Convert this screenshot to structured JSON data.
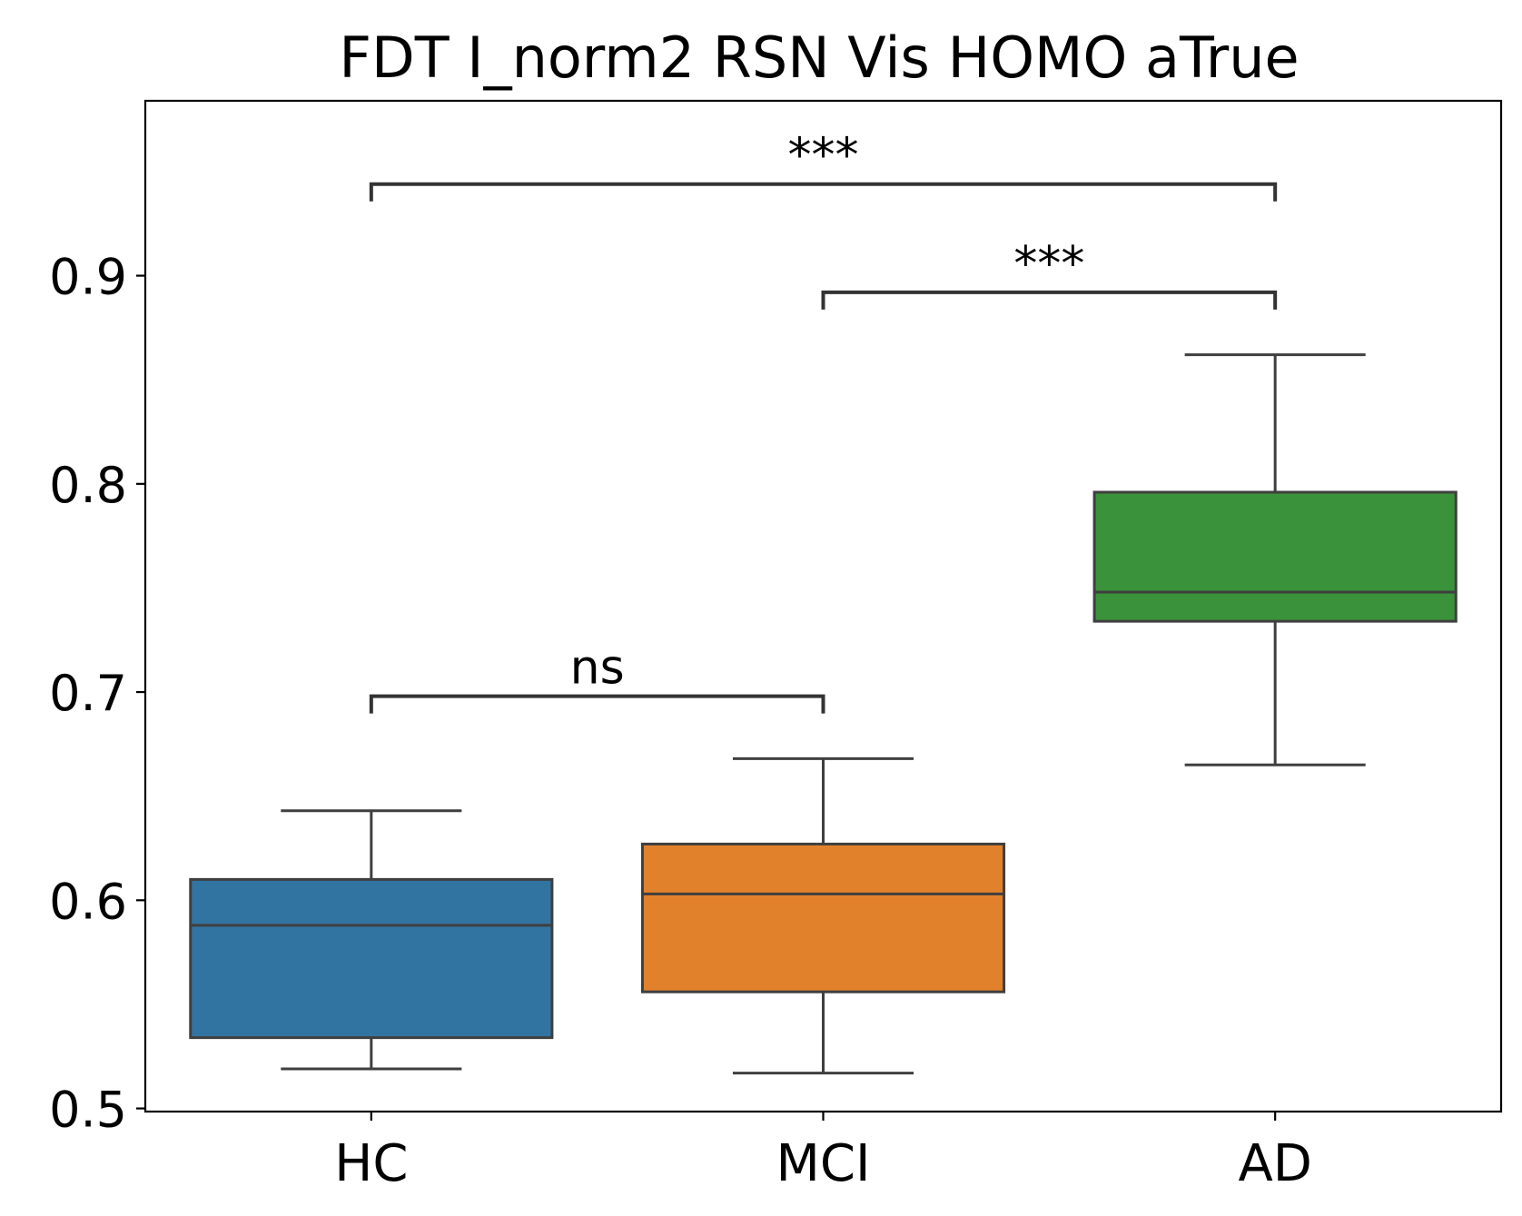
{
  "chart_data": {
    "type": "box",
    "title": "FDT I_norm2 RSN Vis HOMO aTrue",
    "xlabel": "",
    "ylabel": "",
    "ylim": [
      0.4985,
      0.984
    ],
    "yticks": [
      0.5,
      0.6,
      0.7,
      0.8,
      0.9
    ],
    "ytick_labels": [
      "0.5",
      "0.6",
      "0.7",
      "0.8",
      "0.9"
    ],
    "categories": [
      "HC",
      "MCI",
      "AD"
    ],
    "boxes": [
      {
        "category": "HC",
        "color": "#3274a1",
        "whisker_low": 0.519,
        "q1": 0.534,
        "median": 0.588,
        "q3": 0.61,
        "whisker_high": 0.643
      },
      {
        "category": "MCI",
        "color": "#e1812c",
        "whisker_low": 0.517,
        "q1": 0.556,
        "median": 0.603,
        "q3": 0.627,
        "whisker_high": 0.668
      },
      {
        "category": "AD",
        "color": "#3a923a",
        "whisker_low": 0.665,
        "q1": 0.734,
        "median": 0.748,
        "q3": 0.796,
        "whisker_high": 0.862
      }
    ],
    "annotations": [
      {
        "from": "HC",
        "to": "MCI",
        "y": 0.698,
        "label": "ns"
      },
      {
        "from": "MCI",
        "to": "AD",
        "y": 0.892,
        "label": "***"
      },
      {
        "from": "HC",
        "to": "AD",
        "y": 0.944,
        "label": "***"
      }
    ],
    "grid": false,
    "legend": "none"
  }
}
